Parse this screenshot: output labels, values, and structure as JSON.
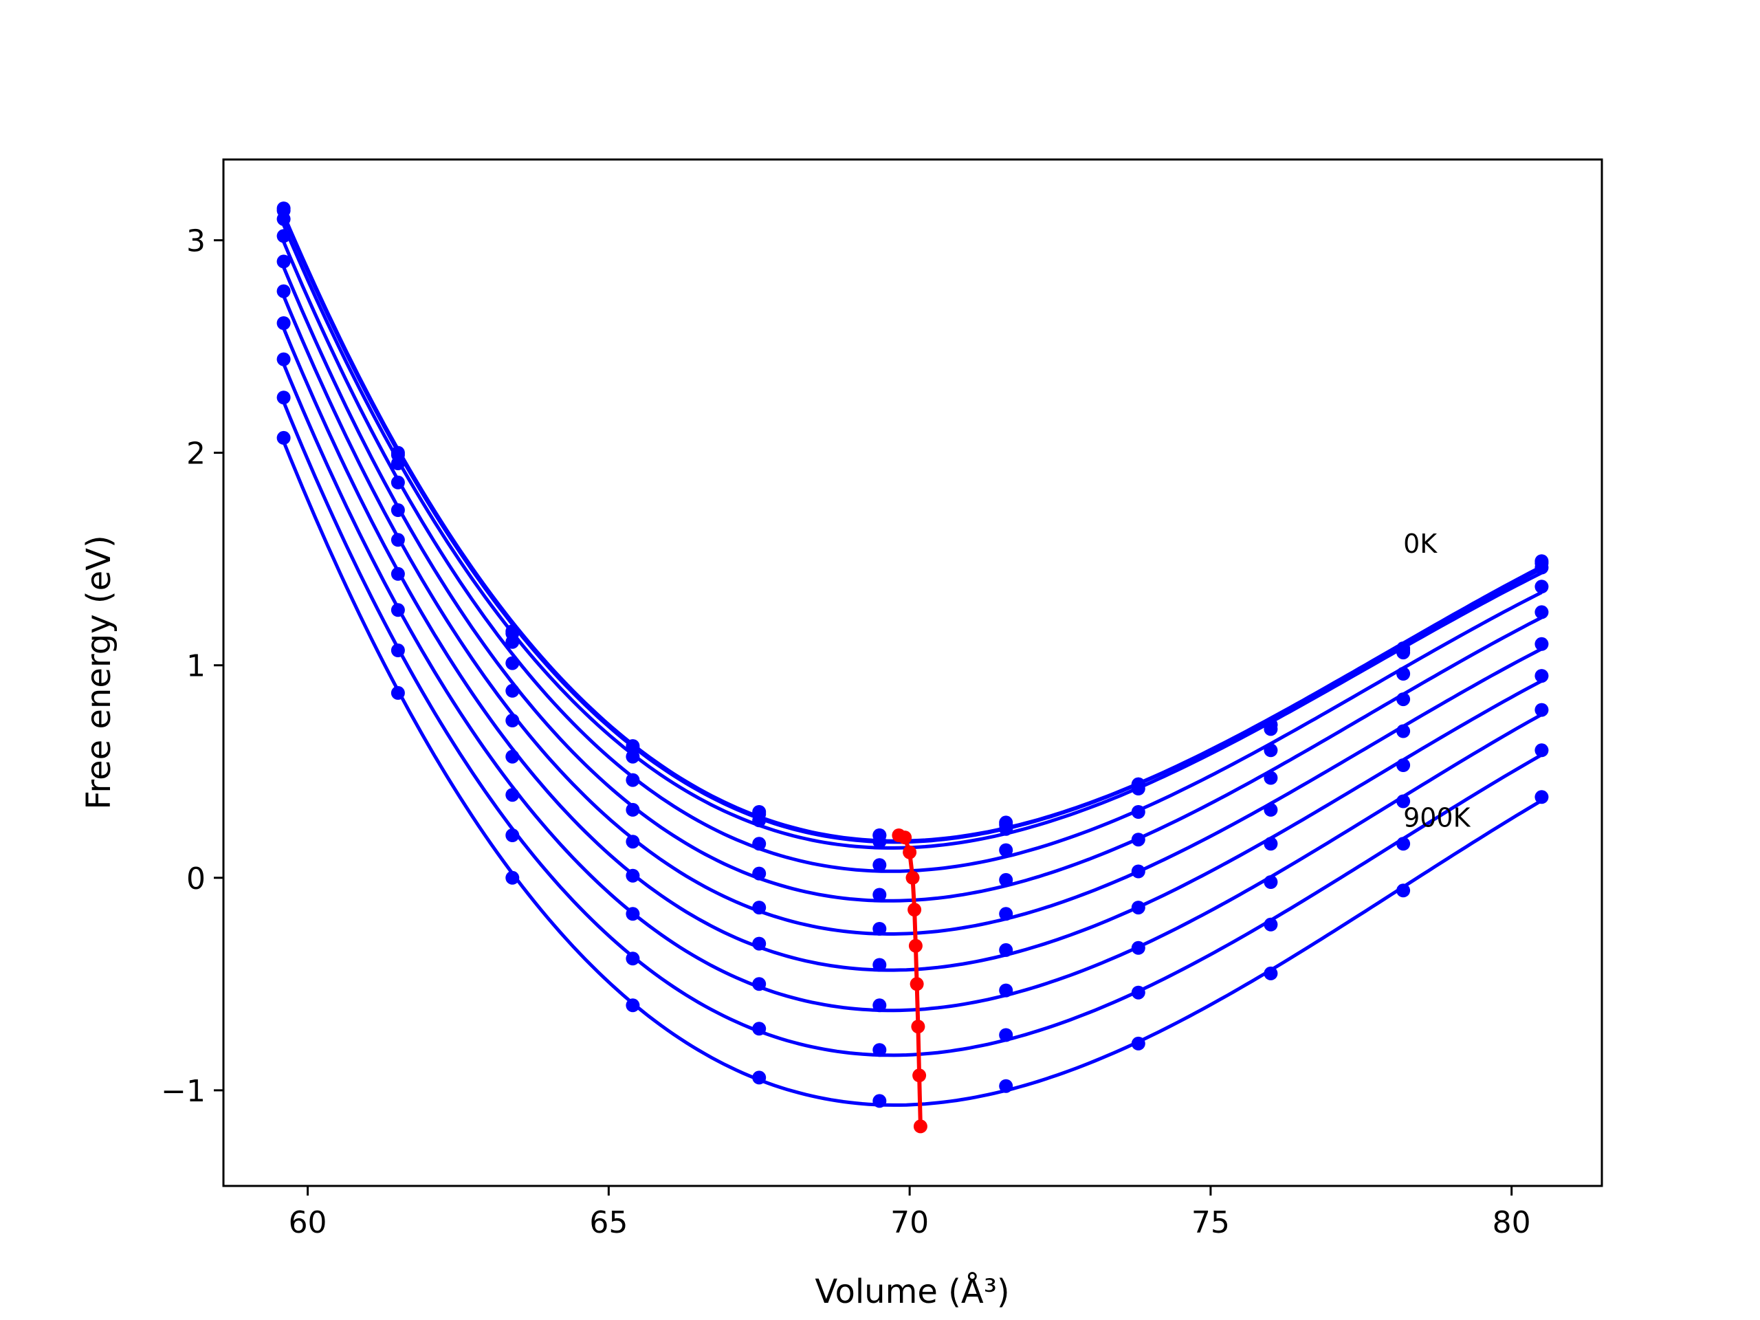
{
  "chart_data": {
    "type": "line",
    "xlabel": "Volume (Å³)",
    "ylabel": "Free energy (eV)",
    "xlim": [
      58.6,
      81.5
    ],
    "ylim": [
      -1.45,
      3.38
    ],
    "x_ticks": [
      60,
      65,
      70,
      75,
      80
    ],
    "x_tick_labels": [
      "60",
      "65",
      "70",
      "75",
      "80"
    ],
    "y_ticks": [
      -1,
      0,
      1,
      2,
      3
    ],
    "y_tick_labels": [
      "−1",
      "0",
      "1",
      "2",
      "3"
    ],
    "grid": false,
    "annotations": [
      {
        "text": "0K",
        "x": 78.2,
        "y": 1.53
      },
      {
        "text": "900K",
        "x": 78.2,
        "y": 0.24
      }
    ],
    "sample_volumes": [
      59.6,
      61.5,
      63.4,
      65.4,
      67.5,
      69.5,
      71.6,
      73.8,
      76.0,
      78.2,
      80.5
    ],
    "series": [
      {
        "values": [
          3.15,
          2.0,
          1.16,
          0.62,
          0.31,
          0.2,
          0.26,
          0.44,
          0.72,
          1.08,
          1.49
        ]
      },
      {
        "values": [
          3.14,
          1.99,
          1.15,
          0.61,
          0.3,
          0.2,
          0.25,
          0.44,
          0.72,
          1.07,
          1.48
        ]
      },
      {
        "values": [
          3.1,
          1.95,
          1.11,
          0.57,
          0.27,
          0.17,
          0.23,
          0.42,
          0.7,
          1.06,
          1.46
        ]
      },
      {
        "values": [
          3.02,
          1.86,
          1.01,
          0.46,
          0.16,
          0.06,
          0.13,
          0.31,
          0.6,
          0.96,
          1.37
        ]
      },
      {
        "values": [
          2.9,
          1.73,
          0.88,
          0.32,
          0.02,
          -0.08,
          -0.01,
          0.18,
          0.47,
          0.84,
          1.25
        ]
      },
      {
        "values": [
          2.76,
          1.59,
          0.74,
          0.17,
          -0.14,
          -0.24,
          -0.17,
          0.03,
          0.32,
          0.69,
          1.1
        ]
      },
      {
        "values": [
          2.61,
          1.43,
          0.57,
          0.01,
          -0.31,
          -0.41,
          -0.34,
          -0.14,
          0.16,
          0.53,
          0.95
        ]
      },
      {
        "values": [
          2.44,
          1.26,
          0.39,
          -0.17,
          -0.5,
          -0.6,
          -0.53,
          -0.33,
          -0.02,
          0.36,
          0.79
        ]
      },
      {
        "values": [
          2.26,
          1.07,
          0.2,
          -0.38,
          -0.71,
          -0.81,
          -0.74,
          -0.54,
          -0.22,
          0.16,
          0.6
        ]
      },
      {
        "values": [
          2.07,
          0.87,
          0.0,
          -0.6,
          -0.94,
          -1.05,
          -0.98,
          -0.78,
          -0.45,
          -0.06,
          0.38
        ]
      }
    ],
    "minima": {
      "x": [
        69.82,
        69.92,
        70.0,
        70.05,
        70.08,
        70.1,
        70.12,
        70.14,
        70.16,
        70.18
      ],
      "y": [
        0.2,
        0.19,
        0.12,
        0.0,
        -0.15,
        -0.32,
        -0.5,
        -0.7,
        -0.93,
        -1.17
      ]
    },
    "colors": {
      "series": "#0000ff",
      "minima": "#ff0000",
      "axes": "#000000"
    }
  }
}
